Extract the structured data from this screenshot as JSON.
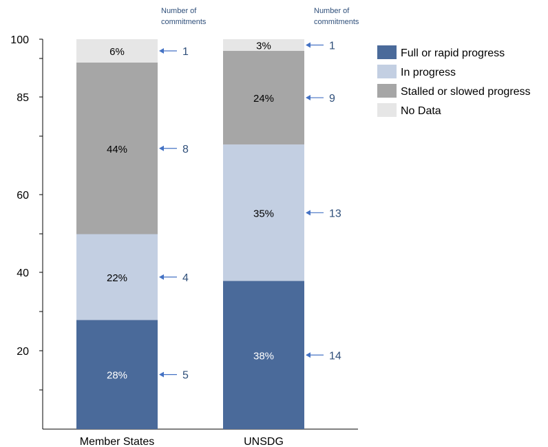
{
  "chart_data": {
    "type": "bar",
    "stacked": true,
    "orientation": "vertical",
    "categories": [
      "Member States",
      "UNSDG"
    ],
    "series": [
      {
        "name": "Full or rapid progress",
        "color": "#4a6a9a",
        "values": [
          28,
          38
        ],
        "labels": [
          "28%",
          "38%"
        ],
        "label_color": "#ffffff",
        "counts": [
          "5",
          "14"
        ]
      },
      {
        "name": "In progress",
        "color": "#c3cfe2",
        "values": [
          22,
          35
        ],
        "labels": [
          "22%",
          "35%"
        ],
        "label_color": "#000000",
        "counts": [
          "4",
          "13"
        ]
      },
      {
        "name": "Stalled or slowed progress",
        "color": "#a6a6a6",
        "values": [
          44,
          24
        ],
        "labels": [
          "44%",
          "24%"
        ],
        "label_color": "#000000",
        "counts": [
          "8",
          "9"
        ]
      },
      {
        "name": "No Data",
        "color": "#e6e6e6",
        "values": [
          6,
          3
        ],
        "labels": [
          "6%",
          "3%"
        ],
        "label_color": "#000000",
        "counts": [
          "1",
          "1"
        ]
      }
    ],
    "ylim": [
      0,
      100
    ],
    "y_tick_labels": [
      "20",
      "40",
      "60",
      "85",
      "100"
    ],
    "count_header": [
      "Number of",
      "commitments"
    ],
    "arrow_color": "#4472c4",
    "legend_position": "top-right",
    "grid": false
  }
}
